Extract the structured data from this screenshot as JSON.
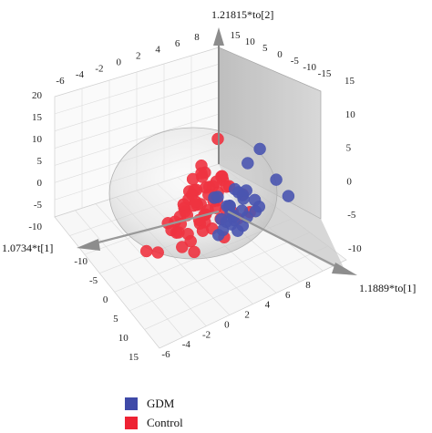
{
  "chart_data": {
    "type": "scatter",
    "subtype": "3d-scatter",
    "axes": {
      "t1": {
        "label": "1.0734*t[1]",
        "ticks": [
          "-10",
          "-5",
          "0",
          "5",
          "10",
          "15"
        ],
        "range": [
          -12,
          16
        ]
      },
      "to1": {
        "label": "1.1889*to[1]",
        "ticks": [
          "-6",
          "-4",
          "-2",
          "0",
          "2",
          "4",
          "6",
          "8"
        ],
        "range": [
          -7,
          9
        ]
      },
      "to2": {
        "label": "1.21815*to[2]",
        "ticks": [
          "-15",
          "-10",
          "-5",
          "0",
          "5",
          "10",
          "15",
          "20"
        ],
        "range": [
          -15,
          20
        ]
      }
    },
    "left_wall_ticks": [
      "20",
      "15",
      "10",
      "5",
      "0",
      "-5",
      "-10"
    ],
    "right_wall_ticks": [
      "15",
      "10",
      "5",
      "0",
      "-5",
      "-10"
    ],
    "top_ticks": [
      "-6",
      "-4",
      "-2",
      "0",
      "2",
      "4",
      "6",
      "8"
    ],
    "top_right_ticks": [
      "-15",
      "-10",
      "-5",
      "0",
      "5",
      "10",
      "15"
    ],
    "grid": true,
    "confidence_ellipsoid": true,
    "series": [
      {
        "name": "GDM",
        "color": "#4a55b0",
        "points": [
          [
            -3,
            5,
            14
          ],
          [
            -2,
            4,
            10
          ],
          [
            -5,
            6,
            6
          ],
          [
            1,
            5,
            3
          ],
          [
            0,
            6,
            2
          ],
          [
            2,
            5,
            4
          ],
          [
            -1,
            4,
            1
          ],
          [
            3,
            6,
            0
          ],
          [
            2,
            4,
            -2
          ],
          [
            4,
            5,
            1
          ],
          [
            1,
            3,
            -1
          ],
          [
            0,
            5,
            -3
          ],
          [
            5,
            6,
            -1
          ],
          [
            3,
            4,
            -4
          ],
          [
            2,
            6,
            5
          ],
          [
            4,
            3,
            2
          ],
          [
            1,
            5,
            -5
          ],
          [
            -1,
            6,
            0
          ],
          [
            5,
            4,
            3
          ],
          [
            0,
            3,
            -6
          ],
          [
            3,
            5,
            -3
          ],
          [
            6,
            6,
            2
          ],
          [
            2,
            3,
            -7
          ],
          [
            -2,
            5,
            -2
          ],
          [
            4,
            6,
            -5
          ],
          [
            1,
            4,
            4
          ],
          [
            6,
            5,
            -2
          ],
          [
            3,
            3,
            -8
          ],
          [
            -6,
            7,
            2
          ]
        ]
      },
      {
        "name": "Control",
        "color": "#ee3340",
        "points": [
          [
            -6,
            -2,
            12
          ],
          [
            -4,
            -3,
            5
          ],
          [
            -3,
            -2,
            4
          ],
          [
            -5,
            -1,
            3
          ],
          [
            -2,
            -3,
            2
          ],
          [
            -6,
            -4,
            1
          ],
          [
            -3,
            -1,
            1
          ],
          [
            -4,
            -2,
            0
          ],
          [
            -1,
            -2,
            0
          ],
          [
            -5,
            -3,
            -1
          ],
          [
            -2,
            -1,
            -1
          ],
          [
            -6,
            -2,
            -2
          ],
          [
            -3,
            -4,
            -2
          ],
          [
            0,
            -2,
            -1
          ],
          [
            -4,
            -1,
            -3
          ],
          [
            -1,
            -3,
            -3
          ],
          [
            -5,
            -2,
            -4
          ],
          [
            -2,
            -2,
            -4
          ],
          [
            1,
            -1,
            -2
          ],
          [
            -3,
            -3,
            -5
          ],
          [
            0,
            -3,
            -5
          ],
          [
            -4,
            -4,
            -6
          ],
          [
            -1,
            -1,
            -6
          ],
          [
            2,
            -2,
            -3
          ],
          [
            -2,
            -4,
            -7
          ],
          [
            1,
            -3,
            -7
          ],
          [
            -5,
            -3,
            -8
          ],
          [
            0,
            -1,
            -8
          ],
          [
            3,
            -1,
            -5
          ],
          [
            -3,
            -2,
            -9
          ],
          [
            2,
            -4,
            -9
          ],
          [
            -1,
            -4,
            -10
          ],
          [
            4,
            -2,
            -7
          ],
          [
            1,
            -2,
            -11
          ],
          [
            -6,
            -1,
            -6
          ],
          [
            -7,
            -3,
            -4
          ],
          [
            -7,
            -2,
            2
          ],
          [
            3,
            -3,
            -10
          ],
          [
            5,
            -1,
            -9
          ],
          [
            -4,
            -3,
            3
          ],
          [
            -2,
            0,
            3
          ],
          [
            0,
            0,
            -4
          ],
          [
            2,
            0,
            -6
          ],
          [
            -8,
            -2,
            -1
          ],
          [
            4,
            0,
            -11
          ],
          [
            -6,
            -5,
            -3
          ],
          [
            -3,
            0,
            -7
          ],
          [
            0,
            -4,
            -12
          ],
          [
            6,
            0,
            -12
          ],
          [
            -5,
            0,
            1
          ],
          [
            -1,
            0,
            -9
          ],
          [
            3,
            1,
            -8
          ],
          [
            -9,
            -3,
            0
          ],
          [
            -4,
            1,
            -5
          ],
          [
            -10,
            -1,
            -3
          ],
          [
            -2,
            1,
            -11
          ],
          [
            5,
            1,
            -13
          ],
          [
            -7,
            0,
            -8
          ],
          [
            8,
            -2,
            -14
          ],
          [
            -8,
            1,
            -6
          ],
          [
            7,
            -4,
            -15
          ],
          [
            -11,
            -5,
            -9
          ]
        ]
      }
    ],
    "legend_position": "bottom-left"
  }
}
